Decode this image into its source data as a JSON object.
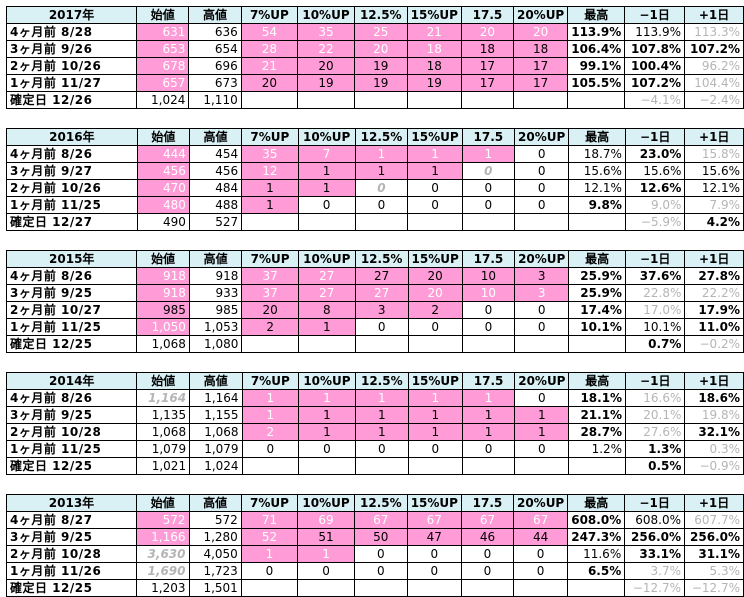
{
  "header": [
    "始値",
    "高値",
    "7%UP",
    "10%UP",
    "12.5%",
    "15%UP",
    "17.5",
    "20%UP",
    "最高",
    "−1日",
    "+1日"
  ],
  "years": [
    {
      "title": "2017年",
      "rows": [
        {
          "label": "4ヶ月前  8/28",
          "cells": [
            "631",
            "636",
            "54",
            "35",
            "25",
            "21",
            "20",
            "20",
            "113.9%",
            "113.9%",
            "113.3%"
          ]
        },
        {
          "label": "3ヶ月前  9/26",
          "cells": [
            "653",
            "654",
            "28",
            "22",
            "20",
            "18",
            "18",
            "18",
            "106.4%",
            "107.8%",
            "107.2%"
          ]
        },
        {
          "label": "2ヶ月前  10/26",
          "cells": [
            "678",
            "696",
            "21",
            "20",
            "19",
            "18",
            "17",
            "17",
            "99.1%",
            "100.4%",
            "96.2%"
          ]
        },
        {
          "label": "1ヶ月前  11/27",
          "cells": [
            "657",
            "673",
            "20",
            "19",
            "19",
            "19",
            "17",
            "17",
            "105.5%",
            "107.2%",
            "104.4%"
          ]
        },
        {
          "label": "確定日  12/26",
          "cells": [
            "1,024",
            "1,110",
            "",
            "",
            "",
            "",
            "",
            "",
            "",
            "−4.1%",
            "−2.4%"
          ]
        }
      ]
    },
    {
      "title": "2016年",
      "rows": [
        {
          "label": "4ヶ月前  8/26",
          "cells": [
            "444",
            "454",
            "35",
            "7",
            "1",
            "1",
            "1",
            "0",
            "18.7%",
            "23.0%",
            "15.8%"
          ]
        },
        {
          "label": "3ヶ月前  9/27",
          "cells": [
            "456",
            "456",
            "12",
            "1",
            "1",
            "1",
            "0",
            "0",
            "15.6%",
            "15.6%",
            "15.6%"
          ]
        },
        {
          "label": "2ヶ月前  10/26",
          "cells": [
            "470",
            "484",
            "1",
            "1",
            "0",
            "0",
            "0",
            "0",
            "12.1%",
            "12.6%",
            "12.1%"
          ]
        },
        {
          "label": "1ヶ月前  11/25",
          "cells": [
            "480",
            "488",
            "1",
            "0",
            "0",
            "0",
            "0",
            "0",
            "9.8%",
            "9.0%",
            "7.9%"
          ]
        },
        {
          "label": "確定日  12/27",
          "cells": [
            "490",
            "527",
            "",
            "",
            "",
            "",
            "",
            "",
            "",
            "−5.9%",
            "4.2%"
          ]
        }
      ]
    },
    {
      "title": "2015年",
      "rows": [
        {
          "label": "4ヶ月前  8/26",
          "cells": [
            "918",
            "918",
            "37",
            "27",
            "27",
            "20",
            "10",
            "3",
            "25.9%",
            "37.6%",
            "27.8%"
          ]
        },
        {
          "label": "3ヶ月前  9/25",
          "cells": [
            "918",
            "933",
            "37",
            "27",
            "27",
            "20",
            "10",
            "3",
            "25.9%",
            "22.8%",
            "22.2%"
          ]
        },
        {
          "label": "2ヶ月前  10/27",
          "cells": [
            "985",
            "985",
            "20",
            "8",
            "3",
            "2",
            "0",
            "0",
            "17.4%",
            "17.0%",
            "17.9%"
          ]
        },
        {
          "label": "1ヶ月前  11/25",
          "cells": [
            "1,050",
            "1,053",
            "2",
            "1",
            "0",
            "0",
            "0",
            "0",
            "10.1%",
            "10.1%",
            "11.0%"
          ]
        },
        {
          "label": "確定日  12/25",
          "cells": [
            "1,068",
            "1,080",
            "",
            "",
            "",
            "",
            "",
            "",
            "",
            "0.7%",
            "−0.2%"
          ]
        }
      ]
    },
    {
      "title": "2014年",
      "rows": [
        {
          "label": "4ヶ月前  8/26",
          "cells": [
            "1,164",
            "1,164",
            "1",
            "1",
            "1",
            "1",
            "1",
            "0",
            "18.1%",
            "16.6%",
            "18.6%"
          ]
        },
        {
          "label": "3ヶ月前  9/25",
          "cells": [
            "1,135",
            "1,155",
            "1",
            "1",
            "1",
            "1",
            "1",
            "1",
            "21.1%",
            "20.1%",
            "19.8%"
          ]
        },
        {
          "label": "2ヶ月前  10/28",
          "cells": [
            "1,068",
            "1,068",
            "2",
            "1",
            "1",
            "1",
            "1",
            "1",
            "28.7%",
            "27.6%",
            "32.1%"
          ]
        },
        {
          "label": "1ヶ月前  11/25",
          "cells": [
            "1,079",
            "1,079",
            "0",
            "0",
            "0",
            "0",
            "0",
            "0",
            "1.2%",
            "1.3%",
            "0.3%"
          ]
        },
        {
          "label": "確定日  12/25",
          "cells": [
            "1,021",
            "1,024",
            "",
            "",
            "",
            "",
            "",
            "",
            "",
            "0.5%",
            "−0.9%"
          ]
        }
      ]
    },
    {
      "title": "2013年",
      "rows": [
        {
          "label": "4ヶ月前  8/27",
          "cells": [
            "572",
            "572",
            "71",
            "69",
            "67",
            "67",
            "67",
            "67",
            "608.0%",
            "608.0%",
            "607.7%"
          ]
        },
        {
          "label": "3ヶ月前  9/25",
          "cells": [
            "1,166",
            "1,280",
            "52",
            "51",
            "50",
            "47",
            "46",
            "44",
            "247.3%",
            "256.0%",
            "256.0%"
          ]
        },
        {
          "label": "2ヶ月前  10/28",
          "cells": [
            "3,630",
            "4,050",
            "1",
            "1",
            "0",
            "0",
            "0",
            "0",
            "11.6%",
            "33.1%",
            "31.1%"
          ]
        },
        {
          "label": "1ヶ月前  11/26",
          "cells": [
            "1,690",
            "1,723",
            "0",
            "0",
            "0",
            "0",
            "0",
            "0",
            "6.5%",
            "3.7%",
            "5.3%"
          ]
        },
        {
          "label": "確定日  12/25",
          "cells": [
            "1,203",
            "1,501",
            "",
            "",
            "",
            "",
            "",
            "",
            "",
            "−12.7%",
            "−12.7%"
          ]
        }
      ]
    }
  ],
  "colors": {
    "pink": "#ff9bd6",
    "header": "#d9f0f5",
    "grey": "#b5b5b5"
  }
}
